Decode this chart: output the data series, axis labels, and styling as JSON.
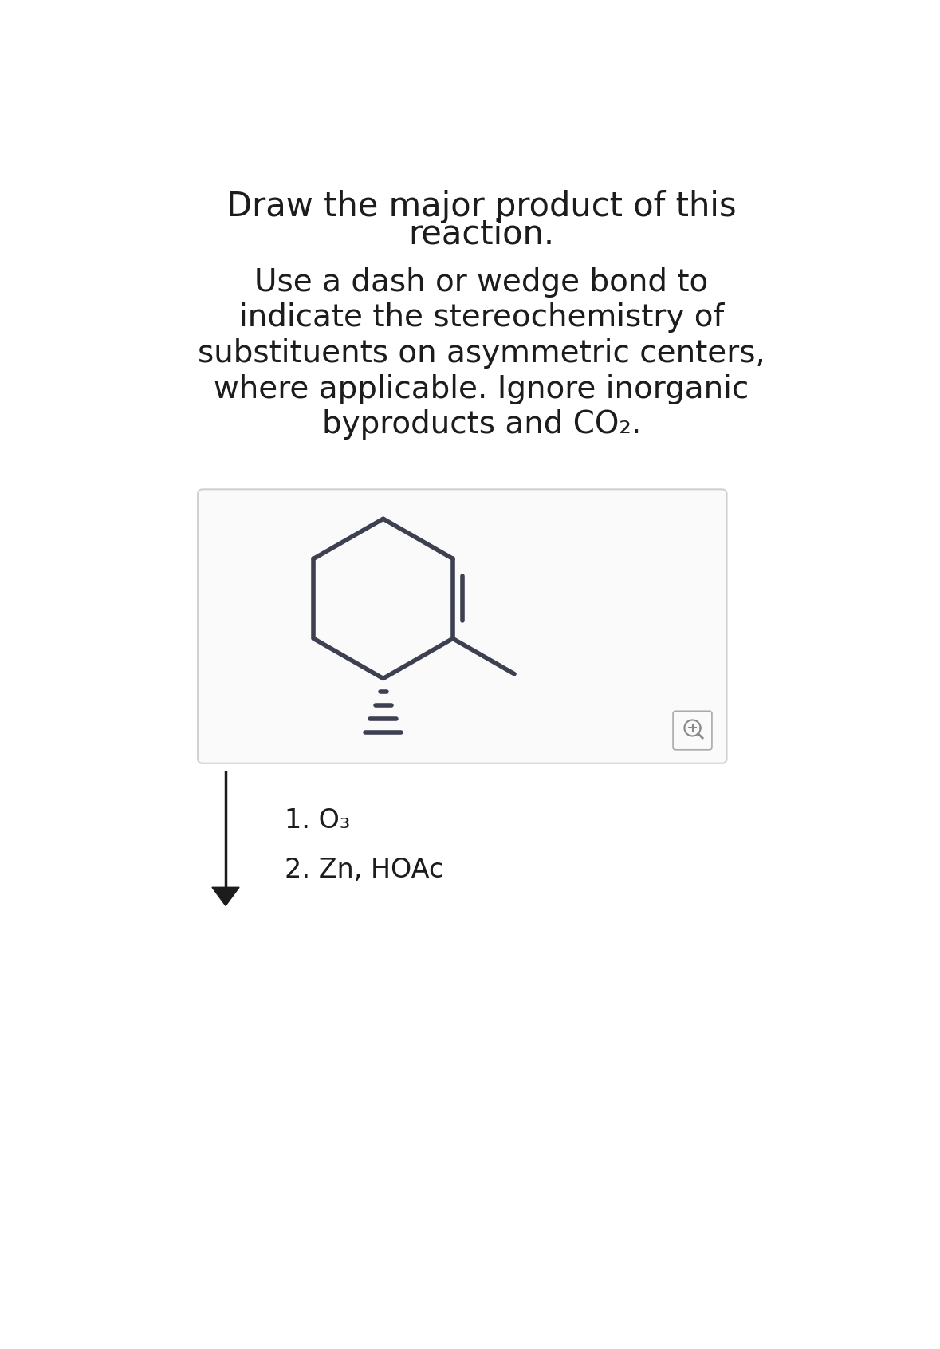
{
  "title_line1": "Draw the major product of this",
  "title_line2": "reaction.",
  "subtitle_lines": [
    "Use a dash or wedge bond to",
    "indicate the stereochemistry of",
    "substituents on asymmetric centers,",
    "where applicable. Ignore inorganic",
    "byproducts and CO₂."
  ],
  "reagent1": "1. O₃",
  "reagent2": "2. Zn, HOAc",
  "bg_color": "#ffffff",
  "text_color": "#1c1c1e",
  "molecule_color": "#3d4050",
  "box_border_color": "#d0d0d0",
  "box_bg_color": "#fafafa",
  "title_fontsize": 30,
  "subtitle_fontsize": 28,
  "reagent_fontsize": 24,
  "arrow_color": "#1c1c1e"
}
